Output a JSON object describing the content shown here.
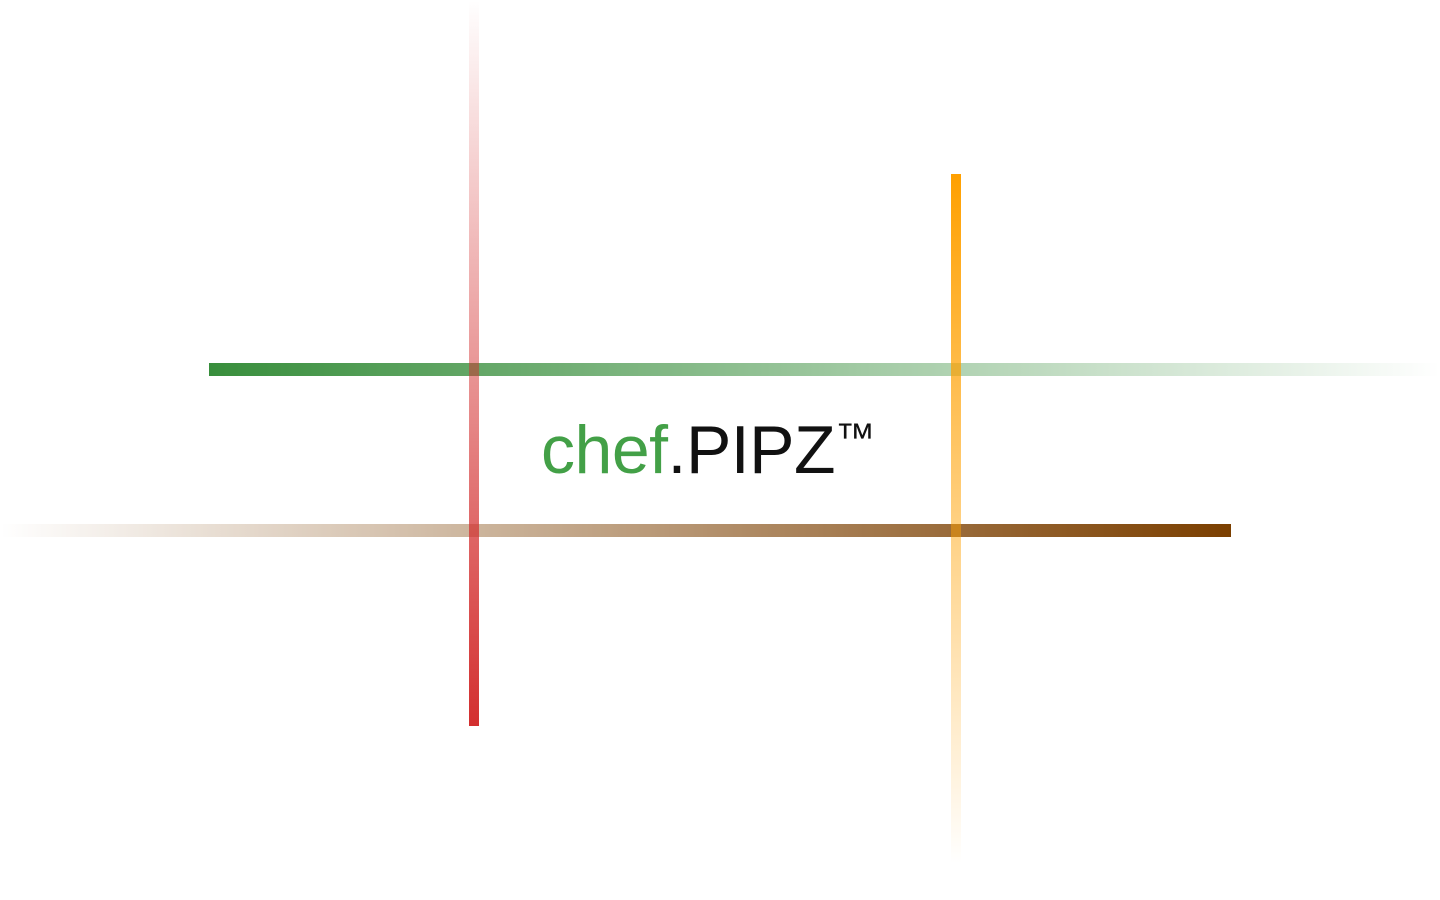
{
  "logo": {
    "chef": "chef",
    "dot": ".",
    "name": "PIPZ",
    "trademark": "™"
  },
  "colors": {
    "brand_green": "#43a047",
    "text_black": "#111111",
    "background": "#ffffff",
    "line_green": "#388e3c",
    "line_brown": "#7b3f00",
    "line_red": "#d32f2f",
    "line_orange": "#ffa000"
  },
  "decorations": [
    {
      "name": "green-gradient-line",
      "orientation": "horizontal",
      "fade": "right"
    },
    {
      "name": "brown-gradient-line",
      "orientation": "horizontal",
      "fade": "left"
    },
    {
      "name": "red-gradient-line",
      "orientation": "vertical",
      "fade": "top"
    },
    {
      "name": "orange-gradient-line",
      "orientation": "vertical",
      "fade": "bottom"
    }
  ]
}
